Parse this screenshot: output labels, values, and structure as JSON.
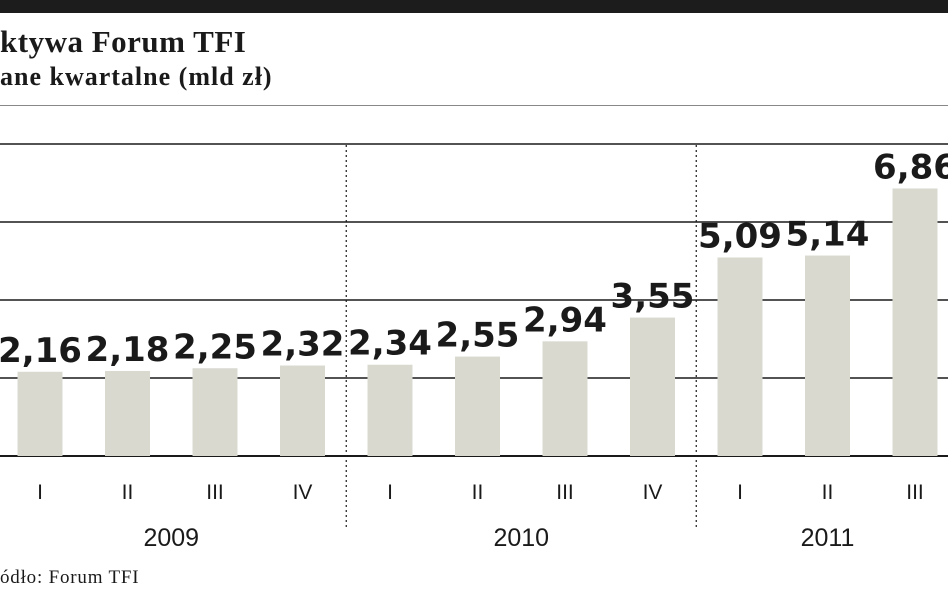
{
  "header": {
    "title": "ktywa Forum TFI",
    "subtitle": "ane kwartalne (mld zł)"
  },
  "footer": {
    "source": "ódło: Forum TFI"
  },
  "colors": {
    "bar": "#d9d9d0",
    "grid": "#1a1a1a",
    "text": "#1a1a1a",
    "topbar": "#1c1c1c"
  },
  "chart_data": {
    "type": "bar",
    "title": "ktywa Forum TFI",
    "subtitle": "ane kwartalne (mld zł)",
    "categories": [
      "I",
      "II",
      "III",
      "IV",
      "I",
      "II",
      "III",
      "IV",
      "I",
      "II",
      "III"
    ],
    "groups": [
      {
        "label": "2009",
        "count": 4
      },
      {
        "label": "2010",
        "count": 4
      },
      {
        "label": "2011",
        "count": 3
      }
    ],
    "values": [
      2.16,
      2.18,
      2.25,
      2.32,
      2.34,
      2.55,
      2.94,
      3.55,
      5.09,
      5.14,
      6.86
    ],
    "value_labels": [
      "2,16",
      "2,18",
      "2,25",
      "2,32",
      "2,34",
      "2,55",
      "2,94",
      "3,55",
      "5,09",
      "5,14",
      "6,86"
    ],
    "ylim": [
      0,
      8
    ],
    "gridlines": [
      0,
      2,
      4,
      6,
      8
    ],
    "grid": true,
    "group_separators": "dotted vertical lines between years"
  }
}
